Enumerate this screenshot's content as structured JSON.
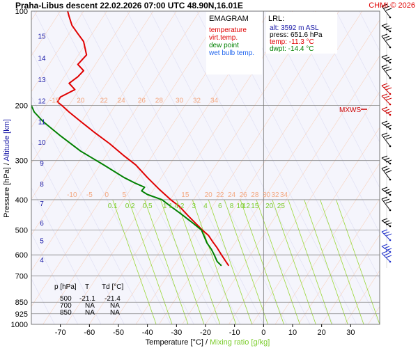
{
  "header": {
    "title": "Praha-Libus   descent   22.02.2026 07:00 UTC   48.90N,16.01E",
    "copyright": "CHMI © 2026"
  },
  "legend": {
    "title": "EMAGRAM",
    "items": [
      {
        "label": "temperature",
        "color": "#e00000"
      },
      {
        "label": "virt.temp.",
        "color": "#e00000"
      },
      {
        "label": "dew point",
        "color": "#008000"
      },
      {
        "label": "wet bulb temp.",
        "color": "#2266ee"
      }
    ]
  },
  "lrl": {
    "title": "LRL:",
    "alt": "alt: 3592 m ASL",
    "press": "press: 651.6 hPa",
    "temp": "temp: -11.3 °C",
    "dwpt": "dwpt: -14.4 °C"
  },
  "mxws_label": "MXWS",
  "table": {
    "headers": [
      "p [hPa]",
      "T",
      "Td [°C]"
    ],
    "rows": [
      [
        "500",
        "-21.1",
        "-21.4"
      ],
      [
        "700",
        "NA",
        "NA"
      ],
      [
        "850",
        "NA",
        "NA"
      ]
    ]
  },
  "axis_labels": {
    "y_pressure": "Pressure [hPa]",
    "y_sep": " / ",
    "y_altitude": "Altitude [km]",
    "x_temp": "Temperature [°C]",
    "x_sep": " / ",
    "x_mix": "Mixing ratio [g/kg]"
  },
  "chart_data": {
    "type": "line",
    "y_scale": "log-pressure",
    "xlim": [
      -80,
      40
    ],
    "ylim": [
      1000,
      100
    ],
    "x_ticks": [
      "-70",
      "-60",
      "-50",
      "-40",
      "-30",
      "-20",
      "-10",
      "0",
      "10",
      "20",
      "30"
    ],
    "pressure_ticks": [
      "100",
      "200",
      "300",
      "400",
      "500",
      "600",
      "700",
      "850",
      "925",
      "1000"
    ],
    "altitude_ticks": [
      "15",
      "14",
      "13",
      "12",
      "11",
      "10",
      "9",
      "8",
      "7",
      "6",
      "5",
      "4"
    ],
    "isotherm_labels_upper": [
      "-15",
      "20",
      "22",
      "24",
      "26",
      "28",
      "30",
      "32",
      "34"
    ],
    "isotherm_labels_lower": [
      "-10",
      "-5",
      "0",
      "5",
      "15",
      "20",
      "22",
      "24",
      "26",
      "28",
      "30",
      "32",
      "34"
    ],
    "mixing_ratio_labels": [
      "0.1",
      "0.2",
      "0.5",
      "1",
      "1.4",
      "2",
      "3",
      "4",
      "6",
      "8",
      "10",
      "12",
      "15",
      "20",
      "25"
    ],
    "series": [
      {
        "name": "temperature",
        "color": "#e00000",
        "points": [
          [
            -12,
            650
          ],
          [
            -13,
            630
          ],
          [
            -14.5,
            600
          ],
          [
            -16,
            570
          ],
          [
            -17.5,
            545
          ],
          [
            -19,
            520
          ],
          [
            -21.1,
            500
          ],
          [
            -23,
            480
          ],
          [
            -26,
            450
          ],
          [
            -29,
            420
          ],
          [
            -32,
            400
          ],
          [
            -36,
            370
          ],
          [
            -40,
            340
          ],
          [
            -44,
            310
          ],
          [
            -48,
            290
          ],
          [
            -53,
            265
          ],
          [
            -58,
            245
          ],
          [
            -63,
            225
          ],
          [
            -67,
            210
          ],
          [
            -69.5,
            200
          ],
          [
            -71,
            195
          ],
          [
            -70,
            188
          ],
          [
            -67,
            182
          ],
          [
            -65,
            178
          ],
          [
            -67,
            170
          ],
          [
            -64,
            162
          ],
          [
            -62,
            155
          ],
          [
            -64,
            148
          ],
          [
            -61,
            138
          ],
          [
            -62,
            125
          ],
          [
            -64,
            118
          ],
          [
            -66,
            111
          ],
          [
            -67,
            104
          ],
          [
            -67.5,
            100
          ]
        ]
      },
      {
        "name": "dew point",
        "color": "#008000",
        "points": [
          [
            -14.5,
            650
          ],
          [
            -16,
            630
          ],
          [
            -17,
            600
          ],
          [
            -18,
            575
          ],
          [
            -19.5,
            550
          ],
          [
            -21.4,
            500
          ],
          [
            -25,
            470
          ],
          [
            -29,
            440
          ],
          [
            -32,
            420
          ],
          [
            -35,
            400
          ],
          [
            -40,
            385
          ],
          [
            -42,
            375
          ],
          [
            -41,
            365
          ],
          [
            -44,
            355
          ],
          [
            -48,
            340
          ],
          [
            -55,
            310
          ],
          [
            -63,
            280
          ],
          [
            -70,
            250
          ],
          [
            -76,
            225
          ],
          [
            -79,
            210
          ],
          [
            -80,
            200
          ]
        ]
      }
    ]
  }
}
